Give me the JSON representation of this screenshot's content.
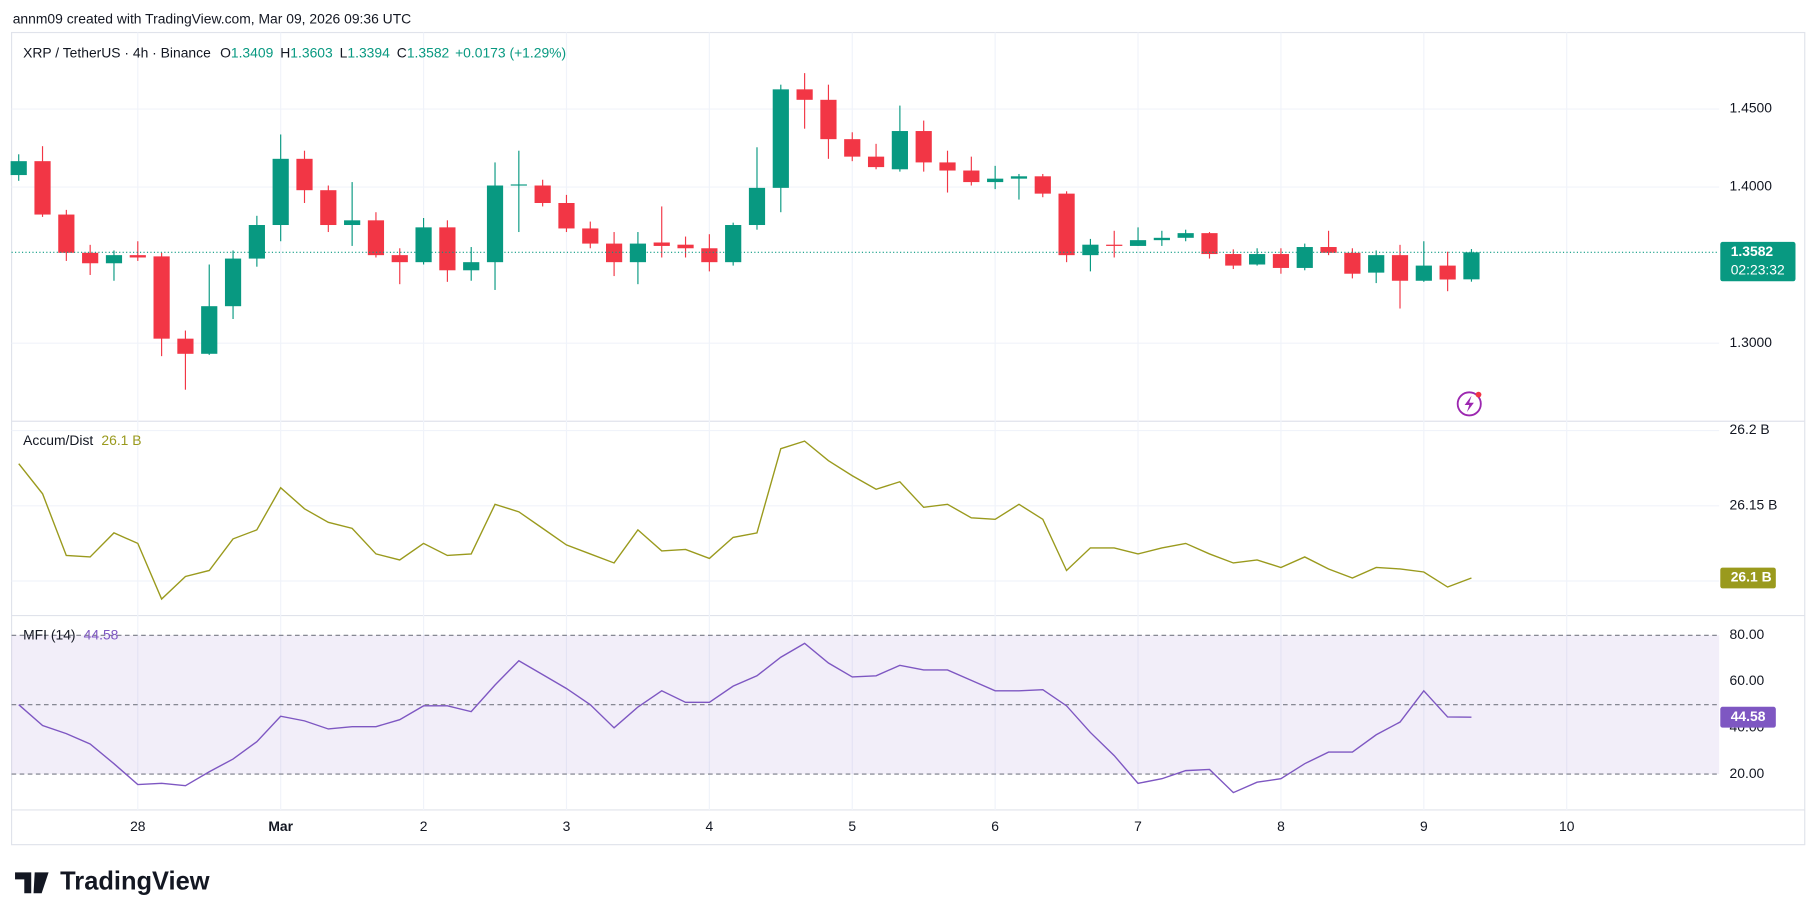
{
  "header": {
    "credit": "annm09 created with TradingView.com, Mar 09, 2026 09:36 UTC"
  },
  "footer": {
    "logo": "TradingView"
  },
  "chart_data": [
    {
      "type": "candlestick",
      "title": "XRP / TetherUS · 4h · Binance",
      "ohlc_labels": [
        "O",
        "H",
        "L",
        "C"
      ],
      "change": "+0.0173 (+1.29%)",
      "countdown": "02:23:32",
      "up_color": "#089981",
      "down_color": "#f23645",
      "open": [
        1.4077,
        1.4166,
        1.3824,
        1.3579,
        1.3512,
        1.3564,
        1.3556,
        1.3029,
        1.2932,
        1.3237,
        1.3542,
        1.3757,
        1.4181,
        1.398,
        1.3757,
        1.3787,
        1.3564,
        1.3519,
        1.3742,
        1.3467,
        1.3519,
        1.401,
        1.401,
        1.3898,
        1.3735,
        1.3638,
        1.3519,
        1.3645,
        1.3631,
        1.3608,
        1.3519,
        1.3757,
        1.3995,
        1.4626,
        1.4559,
        1.4307,
        1.4195,
        1.4114,
        1.4359,
        1.4158,
        1.4106,
        1.4032,
        1.4054,
        1.4069,
        1.3958,
        1.3564,
        1.3631,
        1.3623,
        1.366,
        1.3675,
        1.3705,
        1.3571,
        1.3504,
        1.3571,
        1.3482,
        1.3616,
        1.3579,
        1.3452,
        1.3564,
        1.34,
        1.3497,
        1.3409
      ],
      "high": [
        1.421,
        1.4262,
        1.3854,
        1.363,
        1.3594,
        1.3653,
        1.3579,
        1.3081,
        1.3504,
        1.3594,
        1.3816,
        1.4337,
        1.4233,
        1.401,
        1.4032,
        1.3839,
        1.3608,
        1.3802,
        1.3787,
        1.3616,
        1.4158,
        1.4233,
        1.4047,
        1.395,
        1.3779,
        1.3712,
        1.3712,
        1.3876,
        1.3683,
        1.3698,
        1.3772,
        1.4255,
        1.4656,
        1.473,
        1.4656,
        1.4351,
        1.4277,
        1.4522,
        1.4426,
        1.4233,
        1.4195,
        1.4136,
        1.4084,
        1.4084,
        1.3973,
        1.3668,
        1.372,
        1.3742,
        1.372,
        1.3727,
        1.3712,
        1.3601,
        1.3608,
        1.3608,
        1.3638,
        1.372,
        1.3608,
        1.3594,
        1.363,
        1.3653,
        1.3586,
        1.3603
      ],
      "low": [
        1.404,
        1.3809,
        1.3527,
        1.3437,
        1.34,
        1.3527,
        1.2917,
        1.2702,
        1.2925,
        1.3155,
        1.349,
        1.3653,
        1.3898,
        1.3712,
        1.3623,
        1.3549,
        1.3378,
        1.3504,
        1.3393,
        1.34,
        1.3341,
        1.3712,
        1.3876,
        1.3712,
        1.3608,
        1.343,
        1.3378,
        1.3549,
        1.3549,
        1.346,
        1.3497,
        1.3727,
        1.3839,
        1.4374,
        1.4181,
        1.4166,
        1.4114,
        1.4099,
        1.4099,
        1.3965,
        1.401,
        1.3987,
        1.392,
        1.3935,
        1.3519,
        1.346,
        1.3549,
        1.3623,
        1.3623,
        1.3653,
        1.3542,
        1.3475,
        1.3497,
        1.3445,
        1.3467,
        1.3564,
        1.3415,
        1.3385,
        1.3222,
        1.3393,
        1.3333,
        1.3394
      ],
      "close": [
        1.4166,
        1.3824,
        1.3579,
        1.3512,
        1.3564,
        1.3549,
        1.3029,
        1.2932,
        1.3237,
        1.3542,
        1.3757,
        1.4181,
        1.398,
        1.3757,
        1.3787,
        1.3564,
        1.3519,
        1.3742,
        1.3467,
        1.3519,
        1.401,
        1.4017,
        1.3898,
        1.3735,
        1.3638,
        1.3519,
        1.3638,
        1.3623,
        1.3608,
        1.3519,
        1.3757,
        1.3995,
        1.4626,
        1.4559,
        1.4307,
        1.4195,
        1.4128,
        1.4359,
        1.4158,
        1.4106,
        1.4032,
        1.4054,
        1.4069,
        1.3958,
        1.3564,
        1.3631,
        1.3623,
        1.366,
        1.3675,
        1.3705,
        1.3571,
        1.3497,
        1.3571,
        1.3482,
        1.3616,
        1.3579,
        1.3445,
        1.3564,
        1.34,
        1.3497,
        1.3408,
        1.3582
      ],
      "ylim": [
        1.25,
        1.499
      ],
      "yticks": [
        {
          "value": 1.45,
          "label": "1.4500"
        },
        {
          "value": 1.4,
          "label": "1.4000"
        },
        {
          "value": 1.3,
          "label": "1.3000"
        }
      ],
      "grid": true
    },
    {
      "type": "line",
      "name": "Accum/Dist",
      "color": "#9a9a1d",
      "value_label": "26.1 B",
      "values": [
        26.178,
        26.158,
        26.117,
        26.116,
        26.132,
        26.125,
        26.088,
        26.103,
        26.107,
        26.128,
        26.134,
        26.162,
        26.148,
        26.139,
        26.135,
        26.118,
        26.114,
        26.125,
        26.117,
        26.118,
        26.151,
        26.146,
        26.135,
        26.124,
        26.118,
        26.112,
        26.134,
        26.12,
        26.121,
        26.115,
        26.129,
        26.132,
        26.188,
        26.193,
        26.18,
        26.17,
        26.161,
        26.166,
        26.149,
        26.151,
        26.142,
        26.141,
        26.151,
        26.141,
        26.107,
        26.122,
        26.122,
        26.118,
        26.122,
        26.125,
        26.118,
        26.112,
        26.114,
        26.109,
        26.116,
        26.108,
        26.102,
        26.109,
        26.108,
        26.106,
        26.096,
        26.102
      ],
      "ylim": [
        26.077,
        26.2062
      ],
      "yticks": [
        {
          "value": 26.2,
          "label": "26.2 B"
        },
        {
          "value": 26.15,
          "label": "26.15 B"
        },
        {
          "value": 26.1,
          "label": "26.1 B"
        }
      ],
      "grid": true
    },
    {
      "type": "line",
      "name": "MFI (14)",
      "color": "#7e57c2",
      "band": [
        20,
        80
      ],
      "values": [
        50,
        41,
        37.5,
        33,
        24.5,
        15.5,
        16,
        15,
        21,
        26.5,
        34,
        45,
        43,
        39.5,
        40.5,
        40.5,
        43.5,
        49.5,
        49.5,
        47,
        58.5,
        69,
        63,
        57,
        50,
        40,
        49,
        56,
        51,
        51,
        58,
        62.5,
        70.5,
        76.5,
        68,
        62,
        62.5,
        67,
        65,
        65,
        60.5,
        56,
        56,
        56.5,
        49.5,
        38,
        28,
        16,
        18,
        21.5,
        22,
        12,
        16.5,
        18,
        24.5,
        29.5,
        29.5,
        37,
        42.5,
        56,
        44.7,
        44.58
      ],
      "ylim": [
        4.5,
        88.5
      ],
      "yticks": [
        {
          "value": 80,
          "label": "80.00"
        },
        {
          "value": 60,
          "label": "60.00"
        },
        {
          "value": 40,
          "label": "40.00"
        },
        {
          "value": 20,
          "label": "20.00"
        }
      ],
      "xlim": [
        -0.3,
        71.4
      ],
      "xticks": [
        {
          "value": 5,
          "label": "28"
        },
        {
          "value": 11,
          "label": "Mar"
        },
        {
          "value": 17,
          "label": "2"
        },
        {
          "value": 23,
          "label": "3"
        },
        {
          "value": 29,
          "label": "4"
        },
        {
          "value": 35,
          "label": "5"
        },
        {
          "value": 41,
          "label": "6"
        },
        {
          "value": 47,
          "label": "7"
        },
        {
          "value": 53,
          "label": "8"
        },
        {
          "value": 59,
          "label": "9"
        },
        {
          "value": 65,
          "label": "10"
        }
      ]
    }
  ]
}
